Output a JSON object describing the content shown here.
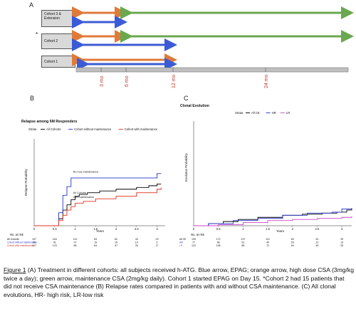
{
  "panel_a": {
    "letter": "A",
    "cohorts": [
      {
        "label": "Cohort 3 & Extension",
        "marker": ""
      },
      {
        "label": "Cohort 2",
        "marker": "*"
      },
      {
        "label": "Cohort 1",
        "marker": ""
      }
    ],
    "timeline_ticks": [
      "3 mo",
      "6 mo",
      "12 mo",
      "24 mo"
    ],
    "colors": {
      "epag": "#3b5bd6",
      "high_dose_csa": "#e07a3a",
      "maintenance_csa": "#6aa84f"
    }
  },
  "panel_b": {
    "letter": "B",
    "chart_data": {
      "type": "line",
      "title": "Relapse among 6M Responders",
      "legend_label": "Strata",
      "legend_position": "top",
      "xlabel": "Years",
      "ylabel": "Relapse Probability",
      "xlim": [
        0,
        3.2
      ],
      "ylim": [
        0,
        1
      ],
      "x_ticks": [
        "0",
        "0.5",
        "1",
        "1.5",
        "2",
        "2.5",
        "3"
      ],
      "series": [
        {
          "name": "All Cohorts",
          "color": "#000000",
          "annotation": "All Cohorts",
          "x": [
            0,
            0.5,
            0.6,
            0.7,
            0.8,
            0.9,
            1.0,
            1.1,
            1.3,
            1.6,
            2.0,
            2.5,
            2.8,
            3.0,
            3.1
          ],
          "y": [
            0,
            0,
            0.08,
            0.18,
            0.24,
            0.3,
            0.34,
            0.36,
            0.38,
            0.4,
            0.42,
            0.44,
            0.46,
            0.48,
            0.48
          ]
        },
        {
          "name": "Cohort without maintenance",
          "color": "#2233cc",
          "annotation": "No Csa maintenance",
          "x": [
            0,
            0.5,
            0.6,
            0.7,
            0.8,
            0.9,
            1.0,
            1.1,
            2.6,
            3.0,
            3.1
          ],
          "y": [
            0,
            0,
            0.15,
            0.35,
            0.45,
            0.55,
            0.55,
            0.55,
            0.55,
            0.6,
            0.6
          ]
        },
        {
          "name": "Cohort with maintenance",
          "color": "#e03020",
          "annotation": "Csa maintenance",
          "x": [
            0,
            0.5,
            0.6,
            0.7,
            0.8,
            0.9,
            1.0,
            1.2,
            1.5,
            2.0,
            2.5,
            3.0,
            3.1
          ],
          "y": [
            0,
            0,
            0.06,
            0.12,
            0.18,
            0.22,
            0.26,
            0.28,
            0.31,
            0.34,
            0.38,
            0.42,
            0.44
          ]
        }
      ],
      "risk_table": {
        "label": "No. at risk",
        "rows": [
          "All Cohorts",
          "Cohort without maintenance",
          "Cohort with maintenance"
        ],
        "values": [
          [
            "197",
            "164",
            "113",
            "83",
            "62",
            "40",
            "23"
          ],
          [
            "50",
            "41",
            "27",
            "19",
            "15",
            "10",
            "6"
          ],
          [
            "147",
            "123",
            "86",
            "64",
            "47",
            "30",
            "17"
          ]
        ]
      }
    }
  },
  "panel_c": {
    "letter": "C",
    "chart_data": {
      "type": "line",
      "title": "Clonal Evolution",
      "legend_label": "Strata",
      "legend_position": "top",
      "xlabel": "Years",
      "ylabel": "Evolution Probability",
      "xlim": [
        0,
        3.2
      ],
      "ylim": [
        0,
        1
      ],
      "x_ticks": [
        "0",
        "0.5",
        "1",
        "1.5",
        "2",
        "2.5",
        "3"
      ],
      "series": [
        {
          "name": "All CE",
          "color": "#000000",
          "x": [
            0,
            0.3,
            0.6,
            0.9,
            1.3,
            1.8,
            2.2,
            2.6,
            2.9,
            3.1,
            3.2
          ],
          "y": [
            0,
            0.02,
            0.04,
            0.06,
            0.08,
            0.1,
            0.11,
            0.12,
            0.13,
            0.15,
            0.16
          ]
        },
        {
          "name": "HR",
          "color": "#2233cc",
          "x": [
            0,
            0.3,
            0.8,
            1.3,
            1.8,
            2.3,
            2.8,
            3.0,
            3.2
          ],
          "y": [
            0,
            0.02,
            0.05,
            0.07,
            0.1,
            0.12,
            0.13,
            0.16,
            0.17
          ]
        },
        {
          "name": "LR",
          "color": "#cc44cc",
          "x": [
            0,
            0.5,
            1.0,
            1.5,
            2.0,
            2.5,
            3.0,
            3.2
          ],
          "y": [
            0,
            0.01,
            0.03,
            0.05,
            0.06,
            0.07,
            0.08,
            0.09
          ]
        }
      ],
      "risk_table": {
        "label": "No. at risk",
        "rows": [
          "All CE",
          "HR",
          "LR"
        ],
        "values": [
          [
            "199",
            "172",
            "137",
            "112",
            "83",
            "61",
            "39"
          ],
          [
            "77",
            "66",
            "51",
            "40",
            "29",
            "21",
            "13"
          ],
          [
            "122",
            "106",
            "86",
            "72",
            "54",
            "40",
            "26"
          ]
        ]
      }
    }
  },
  "caption": {
    "figure_label": "Figure 1",
    "text": " (A) Treatment in different cohorts: all subjects received h-ATG. Blue arrow, EPAG; orange arrow, high dose CSA (3mg/kg twice a day); green arrow, maintenance CSA (2mg/kg daily). Cohort 1 started EPAG on Day 15. *Cohort 2 had 15 patients that did not receive CSA maintenance (B) Relapse rates compared in patients with and without CSA maintenance. (C) All clonal evolutions, HR- high risk, LR-low risk"
  }
}
